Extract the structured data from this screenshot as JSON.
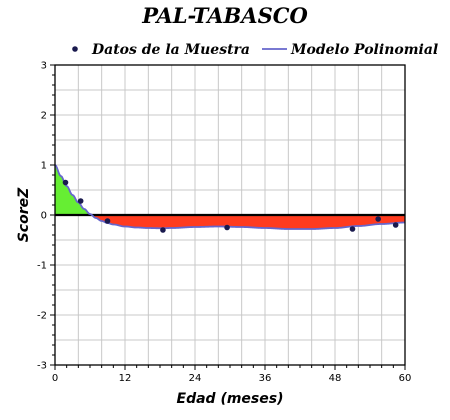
{
  "chart_data": {
    "type": "line",
    "title": "PAL-TABASCO",
    "xlabel": "Edad (meses)",
    "ylabel": "ScoreZ",
    "xlim": [
      0,
      60
    ],
    "ylim": [
      -3,
      3
    ],
    "x_ticks": [
      0,
      12,
      24,
      36,
      48,
      60
    ],
    "y_ticks": [
      3,
      2,
      1,
      0,
      -1,
      -2,
      -3
    ],
    "x_tick_labels": [
      "0",
      "12",
      "24",
      "36",
      "48",
      "60"
    ],
    "y_tick_labels": [
      "3",
      "2",
      "1",
      "0",
      "-1",
      "-2",
      "-3"
    ],
    "x_gridlines": [
      4,
      8,
      12,
      16,
      20,
      24,
      28,
      32,
      36,
      40,
      44,
      48,
      52,
      56
    ],
    "y_gridlines": [
      -2.5,
      -2,
      -1.5,
      -1,
      -0.5,
      0.5,
      1,
      1.5,
      2,
      2.5
    ],
    "grid": true,
    "legend_position": "top",
    "series": [
      {
        "name": "Datos de la Muestra",
        "kind": "scatter",
        "color": "#1a1a4e",
        "x": [
          1.8,
          4.4,
          9.0,
          18.5,
          29.5,
          51.0,
          55.4,
          58.4
        ],
        "y": [
          0.65,
          0.28,
          -0.12,
          -0.3,
          -0.25,
          -0.28,
          -0.08,
          -0.2
        ]
      },
      {
        "name": "Modelo Polinomial",
        "kind": "line",
        "color": "#6666cc",
        "x": [
          0,
          1,
          2,
          3,
          4,
          5,
          6,
          7,
          8,
          9,
          10,
          12,
          14,
          16,
          18,
          20,
          24,
          28,
          32,
          36,
          40,
          44,
          48,
          52,
          56,
          60
        ],
        "y": [
          1.0,
          0.78,
          0.58,
          0.4,
          0.25,
          0.12,
          0.02,
          -0.06,
          -0.12,
          -0.16,
          -0.19,
          -0.23,
          -0.25,
          -0.26,
          -0.265,
          -0.26,
          -0.24,
          -0.23,
          -0.24,
          -0.26,
          -0.28,
          -0.28,
          -0.26,
          -0.22,
          -0.18,
          -0.15
        ]
      }
    ],
    "fill_colors": {
      "positive": "#66ee33",
      "negative": "#ff3b1f"
    },
    "zero_line_color": "#000000",
    "grid_color": "#c8c8c8"
  }
}
